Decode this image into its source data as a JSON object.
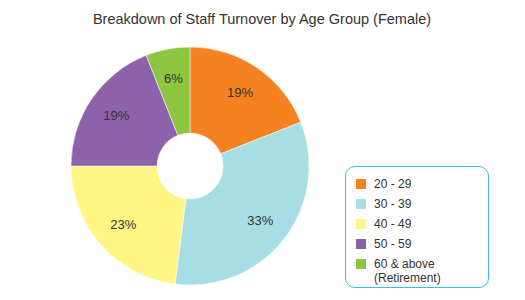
{
  "chart_data": {
    "type": "pie",
    "title": "Breakdown of Staff Turnover by Age Group (Female)",
    "categories": [
      "20 - 29",
      "30 - 39",
      "40 - 49",
      "50 - 59",
      "60 & above (Retirement)"
    ],
    "values": [
      19,
      33,
      23,
      19,
      6
    ],
    "value_labels": [
      "19%",
      "33%",
      "23%",
      "19%",
      "6%"
    ],
    "colors": [
      "#f58220",
      "#a7dde4",
      "#fff685",
      "#8c62aa",
      "#8dc63f"
    ],
    "data_labels": true
  }
}
